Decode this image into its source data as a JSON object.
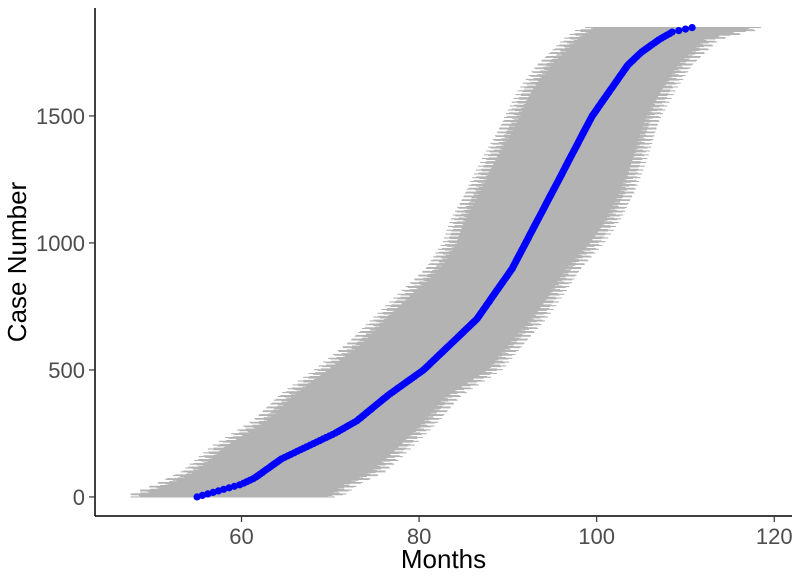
{
  "chart_data": {
    "type": "scatter",
    "title": "",
    "xlabel": "Months",
    "ylabel": "Case Number",
    "xlim": [
      43.5,
      122
    ],
    "ylim": [
      -75,
      1925
    ],
    "x_ticks": [
      60,
      80,
      100,
      120
    ],
    "y_ticks": [
      0,
      500,
      1000,
      1500
    ],
    "x_tick_labels": [
      "60",
      "80",
      "100",
      "120"
    ],
    "y_tick_labels": [
      "0",
      "500",
      "1000",
      "1500"
    ],
    "grid": false,
    "legend": "none",
    "n_cases": 1850,
    "point_color": "#0000ff",
    "interval_color": "#b3b3b3",
    "axis_color": "#000000",
    "series": [
      {
        "kind": "points",
        "cases": [
          0,
          25,
          50,
          75,
          100,
          150,
          200,
          250,
          300,
          400,
          500,
          600,
          700,
          800,
          900,
          1000,
          1100,
          1200,
          1300,
          1400,
          1500,
          1600,
          1700,
          1750,
          1800,
          1830,
          1850
        ],
        "months": [
          55.0,
          57.5,
          60.0,
          61.5,
          62.5,
          64.5,
          67.5,
          70.5,
          73.0,
          76.5,
          80.5,
          83.5,
          86.5,
          88.5,
          90.5,
          92.0,
          93.5,
          95.0,
          96.5,
          98.0,
          99.5,
          101.5,
          103.5,
          105.0,
          107.0,
          108.5,
          111.0
        ]
      },
      {
        "kind": "interval-lower",
        "cases": [
          0,
          50,
          100,
          200,
          300,
          400,
          500,
          600,
          700,
          800,
          900,
          1000,
          1100,
          1200,
          1300,
          1400,
          1500,
          1600,
          1700,
          1800,
          1850
        ],
        "months": [
          47.5,
          51.0,
          54.0,
          57.5,
          62.0,
          65.0,
          69.0,
          72.5,
          75.5,
          78.5,
          81.5,
          83.5,
          84.5,
          86.0,
          87.5,
          89.0,
          90.5,
          92.0,
          94.0,
          97.0,
          99.0
        ]
      },
      {
        "kind": "interval-upper",
        "cases": [
          0,
          50,
          100,
          200,
          300,
          400,
          500,
          600,
          700,
          800,
          900,
          1000,
          1100,
          1200,
          1300,
          1400,
          1500,
          1600,
          1700,
          1800,
          1850
        ],
        "months": [
          70.5,
          72.5,
          75.5,
          78.5,
          81.5,
          84.0,
          88.5,
          91.0,
          93.5,
          95.5,
          97.5,
          100.0,
          102.0,
          103.5,
          104.5,
          105.5,
          106.5,
          108.0,
          110.0,
          113.0,
          118.5
        ]
      }
    ]
  }
}
